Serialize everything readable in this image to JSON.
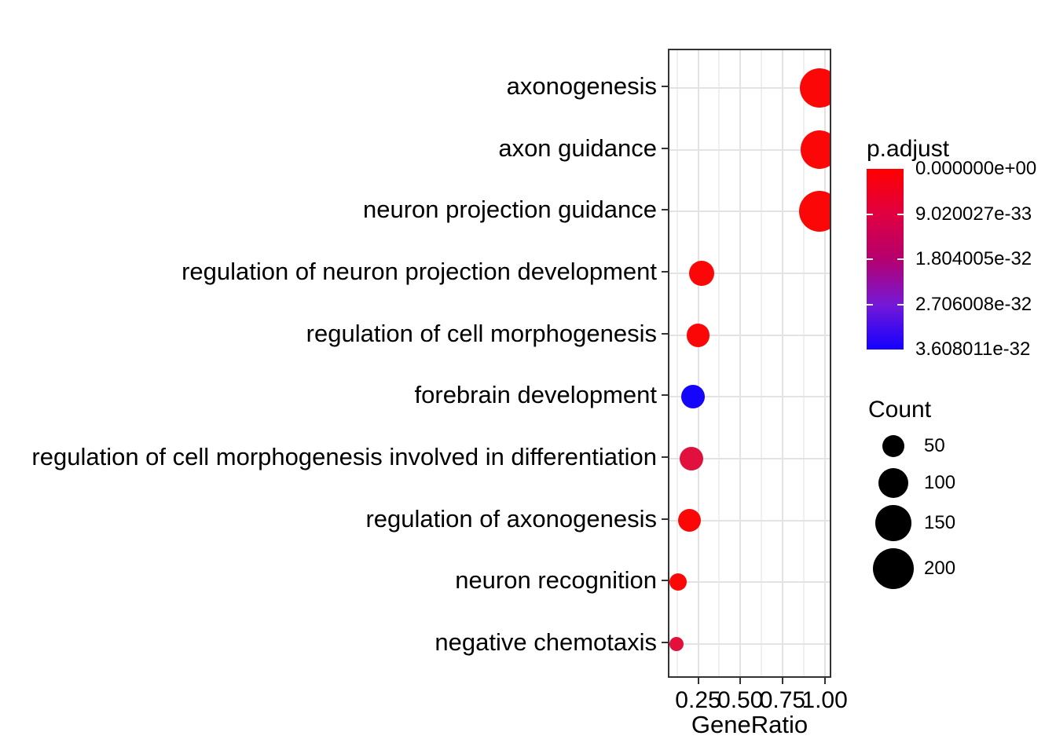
{
  "chart_data": {
    "type": "scatter",
    "subtype": "enrichment-dotplot",
    "title": "",
    "xlabel": "GeneRatio",
    "ylabel": "",
    "xlim": [
      0.0707,
      1.039
    ],
    "x_ticks": [
      0.25,
      0.5,
      0.75,
      1.0
    ],
    "x_tick_labels": [
      "0.25",
      "0.50",
      "0.75",
      "1.00"
    ],
    "x_minor_ticks": [
      0.125,
      0.375,
      0.625,
      0.875
    ],
    "grid": true,
    "legend_position": "right",
    "categories": [
      "axonogenesis",
      "axon guidance",
      "neuron projection guidance",
      "regulation of neuron projection development",
      "regulation of cell morphogenesis",
      "forebrain development",
      "regulation of cell morphogenesis involved in differentiation",
      "regulation of axonogenesis",
      "neuron recognition",
      "negative chemotaxis"
    ],
    "points": [
      {
        "term": "axonogenesis",
        "gene_ratio": 0.97,
        "count": 185,
        "p_adjust": 0.0,
        "color": "#FB0707"
      },
      {
        "term": "axon guidance",
        "gene_ratio": 0.97,
        "count": 170,
        "p_adjust": 0.0,
        "color": "#FB0707"
      },
      {
        "term": "neuron projection guidance",
        "gene_ratio": 0.97,
        "count": 200,
        "p_adjust": 0.0,
        "color": "#FB0707"
      },
      {
        "term": "regulation of neuron projection development",
        "gene_ratio": 0.27,
        "count": 68,
        "p_adjust": 0.0,
        "color": "#FB0707"
      },
      {
        "term": "regulation of cell morphogenesis",
        "gene_ratio": 0.25,
        "count": 58,
        "p_adjust": 0.0,
        "color": "#FB0707"
      },
      {
        "term": "forebrain development",
        "gene_ratio": 0.22,
        "count": 58,
        "p_adjust": 3.6e-32,
        "color": "#1505FA"
      },
      {
        "term": "regulation of cell morphogenesis involved in differentiation",
        "gene_ratio": 0.21,
        "count": 58,
        "p_adjust": 8e-33,
        "color": "#E2103C"
      },
      {
        "term": "regulation of axonogenesis",
        "gene_ratio": 0.2,
        "count": 55,
        "p_adjust": 0.0,
        "color": "#FB0707"
      },
      {
        "term": "neuron recognition",
        "gene_ratio": 0.13,
        "count": 28,
        "p_adjust": 0.0,
        "color": "#FB0707"
      },
      {
        "term": "negative chemotaxis",
        "gene_ratio": 0.12,
        "count": 17,
        "p_adjust": 8e-33,
        "color": "#E2103C"
      }
    ],
    "color_legend": {
      "title": "p.adjust",
      "gradient": [
        "#FF0000",
        "#E00040",
        "#B5006E",
        "#7519D6",
        "#1400FF"
      ],
      "tick_labels": [
        "0.000000e+00",
        "9.020027e-33",
        "1.804005e-32",
        "2.706008e-32",
        "3.608011e-32"
      ]
    },
    "size_legend": {
      "title": "Count",
      "entries": [
        50,
        100,
        150,
        200
      ],
      "labels": [
        "50",
        "100",
        "150",
        "200"
      ]
    }
  }
}
